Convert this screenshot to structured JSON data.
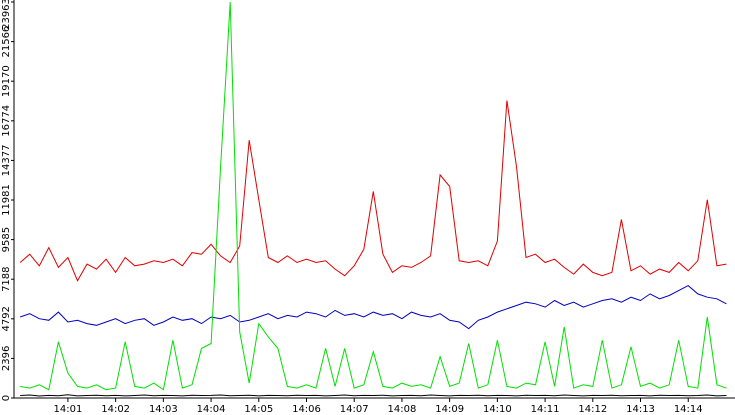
{
  "chart_data": {
    "type": "line",
    "x": [
      0,
      0.2,
      0.4,
      0.6,
      0.8,
      1,
      1.2,
      1.4,
      1.6,
      1.8,
      2,
      2.2,
      2.4,
      2.6,
      2.8,
      3,
      3.2,
      3.4,
      3.6,
      3.8,
      4,
      4.2,
      4.4,
      4.6,
      4.8,
      5,
      5.2,
      5.4,
      5.6,
      5.8,
      6,
      6.2,
      6.4,
      6.6,
      6.8,
      7,
      7.2,
      7.4,
      7.6,
      7.8,
      8,
      8.2,
      8.4,
      8.6,
      8.8,
      9,
      9.2,
      9.4,
      9.6,
      9.8,
      10,
      10.2,
      10.4,
      10.6,
      10.8,
      11,
      11.2,
      11.4,
      11.6,
      11.8,
      12,
      12.2,
      12.4,
      12.6,
      12.8,
      13,
      13.2,
      13.4,
      13.6,
      13.8,
      14,
      14.2,
      14.4,
      14.6,
      14.8
    ],
    "series": [
      {
        "color": "#e00000",
        "values": [
          8200,
          8700,
          8000,
          9100,
          7900,
          8500,
          7100,
          8100,
          7800,
          8400,
          7600,
          8500,
          8000,
          8100,
          8300,
          8200,
          8400,
          8000,
          8800,
          8700,
          9300,
          8600,
          8200,
          9200,
          15600,
          12000,
          8500,
          8200,
          8600,
          8200,
          8400,
          8200,
          8300,
          7800,
          7400,
          8000,
          9000,
          12500,
          8700,
          7600,
          8000,
          7900,
          8200,
          8600,
          13500,
          12800,
          8300,
          8200,
          8300,
          8000,
          9500,
          18000,
          14000,
          8500,
          8700,
          8200,
          8400,
          7900,
          7500,
          8100,
          7600,
          7400,
          7600,
          10800,
          7700,
          8000,
          7500,
          7800,
          7600,
          8200,
          7700,
          8300,
          12000,
          8000,
          8100
        ]
      },
      {
        "color": "#0000c0",
        "values": [
          4900,
          5100,
          4800,
          4700,
          5200,
          4600,
          4700,
          4500,
          4400,
          4600,
          4800,
          4500,
          4700,
          4800,
          4400,
          4600,
          4900,
          4700,
          4800,
          4500,
          4900,
          4800,
          5000,
          4600,
          4700,
          4900,
          5100,
          4800,
          5000,
          4900,
          5200,
          5100,
          4900,
          5300,
          5000,
          5100,
          4900,
          5200,
          5000,
          5100,
          4800,
          5200,
          5000,
          4900,
          5100,
          4700,
          4600,
          4200,
          4700,
          4900,
          5200,
          5400,
          5600,
          5800,
          5700,
          5500,
          5900,
          5600,
          5800,
          5500,
          5700,
          5900,
          6000,
          5800,
          6100,
          5900,
          6300,
          6000,
          6200,
          6500,
          6800,
          6300,
          6100,
          6000,
          5700
        ]
      },
      {
        "color": "#00e000",
        "values": [
          700,
          600,
          800,
          500,
          3400,
          1500,
          700,
          600,
          800,
          500,
          600,
          3400,
          700,
          600,
          900,
          500,
          3500,
          600,
          800,
          3000,
          3300,
          14000,
          23963,
          4000,
          900,
          4500,
          3700,
          3000,
          700,
          600,
          800,
          600,
          3000,
          700,
          3000,
          600,
          800,
          2800,
          700,
          600,
          900,
          700,
          800,
          600,
          2500,
          700,
          900,
          3300,
          600,
          800,
          3500,
          700,
          600,
          900,
          800,
          3400,
          700,
          4300,
          600,
          800,
          700,
          3500,
          600,
          800,
          3100,
          700,
          900,
          600,
          800,
          3500,
          700,
          600,
          4900,
          800,
          600
        ]
      },
      {
        "color": "#000000",
        "values": [
          150,
          180,
          120,
          160,
          140,
          200,
          130,
          150,
          170,
          140,
          160,
          130,
          150,
          180,
          140,
          160,
          150,
          130,
          170,
          150,
          160,
          180,
          140,
          150,
          170,
          130,
          160,
          150,
          140,
          170,
          150,
          160,
          130,
          150,
          180,
          140,
          160,
          150,
          170,
          130,
          150,
          160,
          140,
          180,
          150,
          130,
          160,
          150,
          170,
          140,
          160,
          150,
          130,
          170,
          150,
          160,
          140,
          180,
          150,
          130,
          160,
          150,
          170,
          140,
          150,
          160,
          130,
          170,
          150,
          160,
          140,
          150,
          180,
          130,
          150
        ]
      }
    ],
    "xlim": [
      -0.13,
      14.98
    ],
    "xticks": [
      {
        "value": 1,
        "label": "14:01"
      },
      {
        "value": 2,
        "label": "14:02"
      },
      {
        "value": 3,
        "label": "14:03"
      },
      {
        "value": 4,
        "label": "14:04"
      },
      {
        "value": 5,
        "label": "14:05"
      },
      {
        "value": 6,
        "label": "14:06"
      },
      {
        "value": 7,
        "label": "14:07"
      },
      {
        "value": 8,
        "label": "14:08"
      },
      {
        "value": 9,
        "label": "14:09"
      },
      {
        "value": 10,
        "label": "14:10"
      },
      {
        "value": 11,
        "label": "14:11"
      },
      {
        "value": 12,
        "label": "14:12"
      },
      {
        "value": 13,
        "label": "14:13"
      },
      {
        "value": 14,
        "label": "14:14"
      }
    ],
    "ylim": [
      0,
      23963
    ],
    "yticks": [
      0,
      2396,
      4792,
      7188,
      9585,
      11981,
      14377,
      16774,
      19170,
      21566,
      23963
    ]
  }
}
